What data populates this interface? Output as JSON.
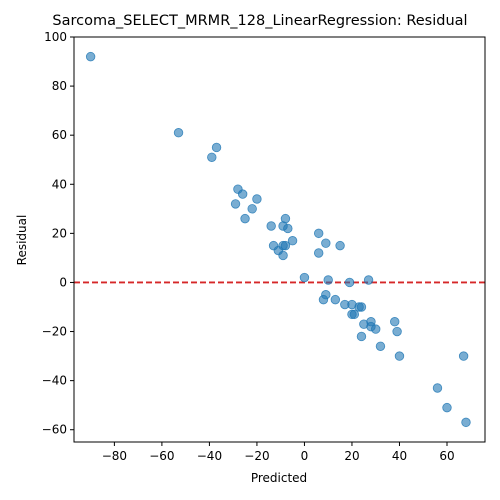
{
  "chart_data": {
    "type": "scatter",
    "title": "Sarcoma_SELECT_MRMR_128_LinearRegression: Residual",
    "xlabel": "Predicted",
    "ylabel": "Residual",
    "xlim": [
      -97,
      76
    ],
    "ylim": [
      -65,
      100
    ],
    "xticks": [
      -80,
      -60,
      -40,
      -20,
      0,
      20,
      40,
      60
    ],
    "yticks": [
      -60,
      -40,
      -20,
      0,
      20,
      40,
      60,
      80,
      100
    ],
    "reference_line": {
      "y": 0,
      "style": "dashed",
      "color": "#d62728"
    },
    "point_color": "#1f77b4",
    "points": [
      [
        -90,
        92
      ],
      [
        -53,
        61
      ],
      [
        -37,
        55
      ],
      [
        -39,
        51
      ],
      [
        -28,
        38
      ],
      [
        -26,
        36
      ],
      [
        -29,
        32
      ],
      [
        -20,
        34
      ],
      [
        -22,
        30
      ],
      [
        -25,
        26
      ],
      [
        -8,
        26
      ],
      [
        -7,
        22
      ],
      [
        -9,
        23
      ],
      [
        -14,
        23
      ],
      [
        -5,
        17
      ],
      [
        -13,
        15
      ],
      [
        -9,
        15
      ],
      [
        -8,
        15
      ],
      [
        -11,
        13
      ],
      [
        -9,
        11
      ],
      [
        6,
        20
      ],
      [
        9,
        16
      ],
      [
        15,
        15
      ],
      [
        6,
        12
      ],
      [
        0,
        2
      ],
      [
        10,
        1
      ],
      [
        19,
        0
      ],
      [
        27,
        1
      ],
      [
        9,
        -5
      ],
      [
        8,
        -7
      ],
      [
        13,
        -7
      ],
      [
        17,
        -9
      ],
      [
        20,
        -9
      ],
      [
        23,
        -10
      ],
      [
        24,
        -10
      ],
      [
        20,
        -13
      ],
      [
        21,
        -13
      ],
      [
        28,
        -16
      ],
      [
        38,
        -16
      ],
      [
        25,
        -17
      ],
      [
        28,
        -18
      ],
      [
        30,
        -19
      ],
      [
        39,
        -20
      ],
      [
        24,
        -22
      ],
      [
        32,
        -26
      ],
      [
        40,
        -30
      ],
      [
        67,
        -30
      ],
      [
        56,
        -43
      ],
      [
        60,
        -51
      ],
      [
        68,
        -57
      ]
    ]
  }
}
